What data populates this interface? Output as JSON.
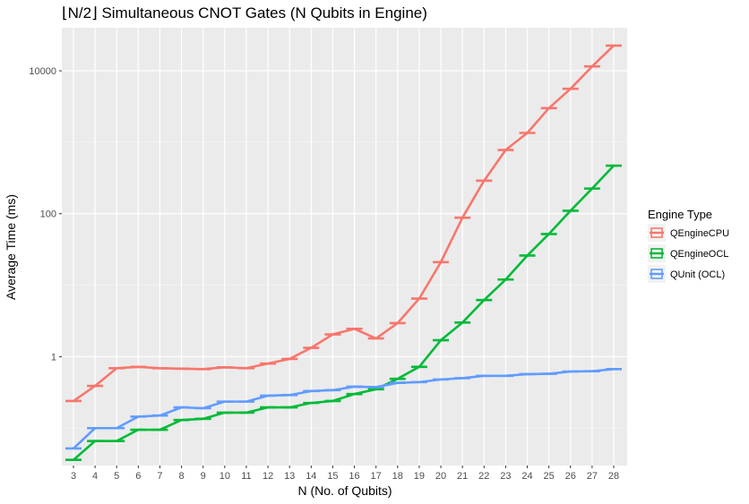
{
  "chart_data": {
    "type": "line",
    "title": "⌊N/2⌋ Simultaneous CNOT Gates (N Qubits in Engine)",
    "xlabel": "N (No. of Qubits)",
    "ylabel": "Average Time (ms)",
    "yscale": "log10",
    "ylim": [
      0.03,
      40000
    ],
    "y_ticks": [
      1,
      100,
      10000
    ],
    "y_tick_labels": [
      "1",
      "100",
      "10000"
    ],
    "grid": true,
    "legend_position": "right",
    "legend_title": "Engine Type",
    "x": [
      3,
      4,
      5,
      6,
      7,
      8,
      9,
      10,
      11,
      12,
      13,
      14,
      15,
      16,
      17,
      18,
      19,
      20,
      21,
      22,
      23,
      24,
      25,
      26,
      27,
      28
    ],
    "series": [
      {
        "name": "QEngineCPU",
        "color": "#F8766D",
        "values": [
          0.24,
          0.39,
          0.69,
          0.72,
          0.69,
          0.68,
          0.67,
          0.71,
          0.69,
          0.8,
          0.93,
          1.33,
          2.05,
          2.45,
          1.8,
          2.95,
          6.5,
          21,
          88,
          290,
          780,
          1350,
          3000,
          5600,
          11500,
          22500
        ]
      },
      {
        "name": "QEngineOCL",
        "color": "#00BA38",
        "values": [
          0.036,
          0.066,
          0.066,
          0.095,
          0.095,
          0.13,
          0.135,
          0.165,
          0.165,
          0.195,
          0.195,
          0.225,
          0.24,
          0.3,
          0.35,
          0.49,
          0.72,
          1.7,
          3.0,
          6.2,
          12,
          26,
          52,
          110,
          225,
          470
        ]
      },
      {
        "name": "QUnit (OCL)",
        "color": "#619CFF",
        "values": [
          0.052,
          0.1,
          0.1,
          0.145,
          0.15,
          0.195,
          0.19,
          0.235,
          0.235,
          0.285,
          0.29,
          0.33,
          0.34,
          0.38,
          0.375,
          0.43,
          0.44,
          0.48,
          0.5,
          0.54,
          0.54,
          0.57,
          0.575,
          0.62,
          0.625,
          0.67
        ]
      }
    ]
  }
}
